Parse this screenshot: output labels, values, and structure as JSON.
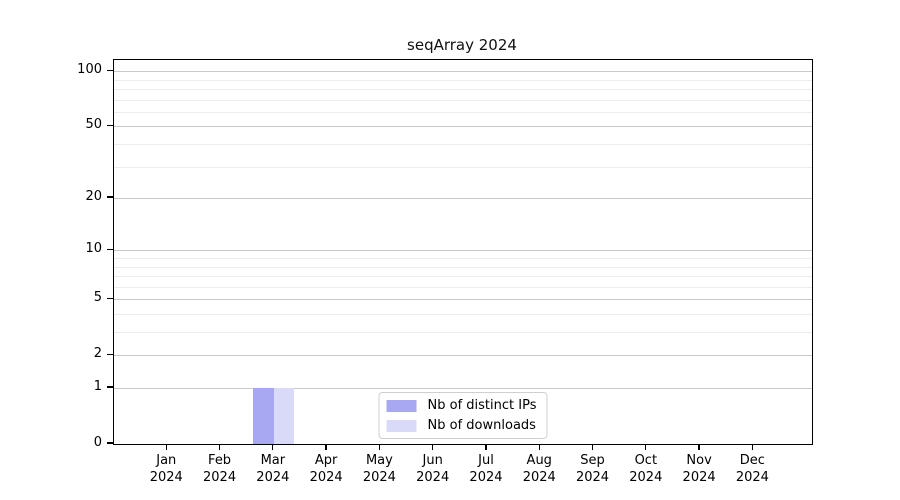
{
  "colors": {
    "background": "#ffffff",
    "axis": "#000000",
    "grid_major": "#c9c9c9",
    "grid_minor": "#ededed",
    "distinct_ips": "#a8a8f2",
    "downloads": "#d9d9f8"
  },
  "chart_data": {
    "type": "bar",
    "title": "seqArray 2024",
    "categories": [
      "Jan 2024",
      "Feb 2024",
      "Mar 2024",
      "Apr 2024",
      "May 2024",
      "Jun 2024",
      "Jul 2024",
      "Aug 2024",
      "Sep 2024",
      "Oct 2024",
      "Nov 2024",
      "Dec 2024"
    ],
    "series": [
      {
        "name": "Nb of distinct IPs",
        "color": "#a8a8f2",
        "values": [
          0,
          0,
          1,
          0,
          0,
          0,
          0,
          0,
          0,
          0,
          0,
          0
        ]
      },
      {
        "name": "Nb of downloads",
        "color": "#d9d9f8",
        "values": [
          0,
          0,
          1,
          0,
          0,
          0,
          0,
          0,
          0,
          0,
          0,
          0
        ]
      }
    ],
    "xlabel": "",
    "ylabel": "",
    "y_scale": "log1p",
    "y_ticks": [
      0,
      1,
      2,
      5,
      10,
      20,
      50,
      100
    ],
    "y_minor_gridlines": [
      3,
      4,
      6,
      7,
      8,
      9,
      30,
      40,
      60,
      70,
      80,
      90
    ],
    "ylim": [
      0,
      115
    ],
    "grid": "horizontal",
    "legend_position": "inside-bottom-center"
  }
}
